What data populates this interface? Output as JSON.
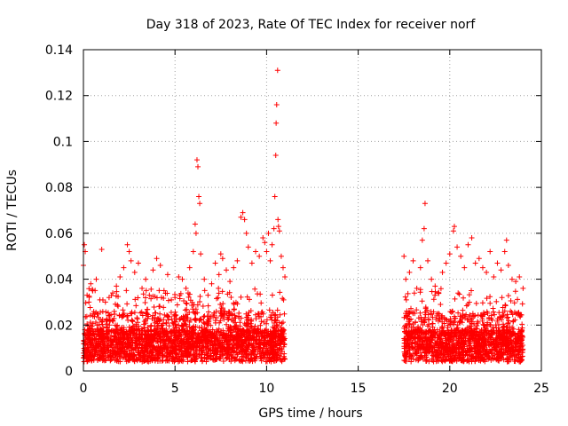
{
  "chart_data": {
    "type": "scatter",
    "title": "Day 318 of 2023, Rate Of TEC Index for receiver norf",
    "xlabel": "GPS time / hours",
    "ylabel": "ROTI / TECUs",
    "xlim": [
      0,
      25
    ],
    "ylim": [
      0,
      0.14
    ],
    "xticks": [
      0,
      5,
      10,
      15,
      20,
      25
    ],
    "yticks": [
      0,
      0.02,
      0.04,
      0.06,
      0.08,
      0.1,
      0.12,
      0.14
    ],
    "xtick_labels": [
      "0",
      "5",
      "10",
      "15",
      "20",
      "25"
    ],
    "ytick_labels": [
      "0",
      "0.02",
      "0.04",
      "0.06",
      "0.08",
      "0.1",
      "0.12",
      "0.14"
    ],
    "grid": true,
    "marker": "plus",
    "marker_color": "#ff0000",
    "series": [
      {
        "points": [
          [
            0.0,
            0.046
          ],
          [
            0.05,
            0.055
          ],
          [
            0.1,
            0.052
          ],
          [
            0.2,
            0.033
          ],
          [
            0.3,
            0.03
          ],
          [
            0.4,
            0.038
          ],
          [
            0.5,
            0.035
          ],
          [
            0.7,
            0.04
          ],
          [
            0.9,
            0.031
          ],
          [
            1.0,
            0.053
          ],
          [
            1.2,
            0.03
          ],
          [
            1.4,
            0.032
          ],
          [
            1.6,
            0.034
          ],
          [
            1.8,
            0.037
          ],
          [
            2.0,
            0.041
          ],
          [
            2.2,
            0.045
          ],
          [
            2.4,
            0.055
          ],
          [
            2.5,
            0.052
          ],
          [
            2.6,
            0.048
          ],
          [
            2.8,
            0.043
          ],
          [
            3.0,
            0.047
          ],
          [
            3.2,
            0.036
          ],
          [
            3.4,
            0.04
          ],
          [
            3.6,
            0.033
          ],
          [
            3.8,
            0.044
          ],
          [
            4.0,
            0.049
          ],
          [
            4.2,
            0.046
          ],
          [
            4.4,
            0.035
          ],
          [
            4.6,
            0.042
          ],
          [
            4.8,
            0.031
          ],
          [
            5.0,
            0.032
          ],
          [
            5.2,
            0.041
          ],
          [
            5.4,
            0.04
          ],
          [
            5.6,
            0.036
          ],
          [
            5.8,
            0.045
          ],
          [
            6.0,
            0.052
          ],
          [
            6.1,
            0.064
          ],
          [
            6.15,
            0.06
          ],
          [
            6.2,
            0.092
          ],
          [
            6.25,
            0.089
          ],
          [
            6.3,
            0.076
          ],
          [
            6.35,
            0.073
          ],
          [
            6.4,
            0.051
          ],
          [
            6.6,
            0.04
          ],
          [
            6.8,
            0.033
          ],
          [
            7.0,
            0.038
          ],
          [
            7.2,
            0.047
          ],
          [
            7.4,
            0.042
          ],
          [
            7.5,
            0.051
          ],
          [
            7.6,
            0.049
          ],
          [
            7.8,
            0.044
          ],
          [
            8.0,
            0.039
          ],
          [
            8.2,
            0.045
          ],
          [
            8.4,
            0.048
          ],
          [
            8.6,
            0.067
          ],
          [
            8.7,
            0.069
          ],
          [
            8.8,
            0.066
          ],
          [
            8.9,
            0.06
          ],
          [
            9.0,
            0.054
          ],
          [
            9.2,
            0.047
          ],
          [
            9.4,
            0.052
          ],
          [
            9.6,
            0.05
          ],
          [
            9.8,
            0.058
          ],
          [
            9.9,
            0.056
          ],
          [
            10.0,
            0.052
          ],
          [
            10.1,
            0.06
          ],
          [
            10.2,
            0.048
          ],
          [
            10.3,
            0.055
          ],
          [
            10.4,
            0.062
          ],
          [
            10.45,
            0.076
          ],
          [
            10.5,
            0.094
          ],
          [
            10.52,
            0.108
          ],
          [
            10.55,
            0.116
          ],
          [
            10.6,
            0.131
          ],
          [
            10.62,
            0.066
          ],
          [
            10.65,
            0.063
          ],
          [
            10.7,
            0.061
          ],
          [
            10.8,
            0.05
          ],
          [
            10.9,
            0.045
          ],
          [
            11.0,
            0.041
          ],
          [
            17.5,
            0.05
          ],
          [
            17.6,
            0.04
          ],
          [
            17.8,
            0.043
          ],
          [
            18.0,
            0.048
          ],
          [
            18.2,
            0.036
          ],
          [
            18.4,
            0.045
          ],
          [
            18.5,
            0.057
          ],
          [
            18.6,
            0.062
          ],
          [
            18.65,
            0.073
          ],
          [
            18.8,
            0.048
          ],
          [
            19.0,
            0.04
          ],
          [
            19.2,
            0.037
          ],
          [
            19.4,
            0.034
          ],
          [
            19.6,
            0.043
          ],
          [
            19.8,
            0.047
          ],
          [
            20.0,
            0.051
          ],
          [
            20.2,
            0.061
          ],
          [
            20.25,
            0.063
          ],
          [
            20.4,
            0.054
          ],
          [
            20.6,
            0.05
          ],
          [
            20.8,
            0.045
          ],
          [
            21.0,
            0.055
          ],
          [
            21.2,
            0.058
          ],
          [
            21.4,
            0.047
          ],
          [
            21.6,
            0.049
          ],
          [
            21.8,
            0.045
          ],
          [
            22.0,
            0.043
          ],
          [
            22.2,
            0.052
          ],
          [
            22.4,
            0.041
          ],
          [
            22.6,
            0.047
          ],
          [
            22.8,
            0.044
          ],
          [
            23.0,
            0.052
          ],
          [
            23.1,
            0.057
          ],
          [
            23.2,
            0.046
          ],
          [
            23.4,
            0.04
          ],
          [
            23.6,
            0.039
          ],
          [
            23.8,
            0.041
          ],
          [
            24.0,
            0.036
          ]
        ]
      }
    ],
    "dense_segments": [
      [
        0.0,
        11.0
      ],
      [
        17.5,
        24.0
      ]
    ]
  }
}
